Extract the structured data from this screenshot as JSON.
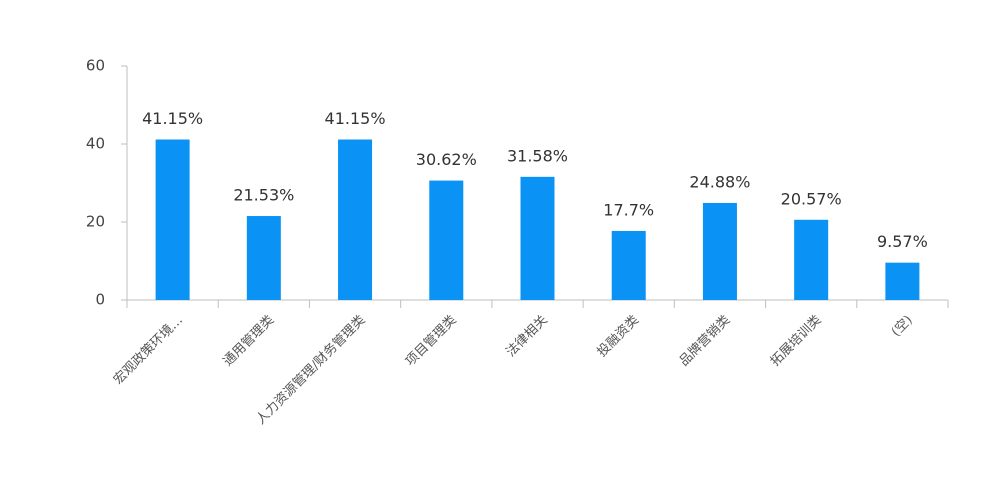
{
  "chart_data": {
    "type": "bar",
    "categories": [
      "宏观政策环境…",
      "通用管理类",
      "人力资源管理/财务管理类",
      "项目管理类",
      "法律相关",
      "投融资类",
      "品牌营销类",
      "拓展培训类",
      "(空)"
    ],
    "values": [
      41.15,
      21.53,
      41.15,
      30.62,
      31.58,
      17.7,
      24.88,
      20.57,
      9.57
    ],
    "value_labels": [
      "41.15%",
      "21.53%",
      "41.15%",
      "30.62%",
      "31.58%",
      "17.7%",
      "24.88%",
      "20.57%",
      "9.57%"
    ],
    "color": "#0a93f5",
    "ylim": [
      0,
      60
    ],
    "yticks": [
      0,
      20,
      40,
      60
    ],
    "grid": false
  }
}
